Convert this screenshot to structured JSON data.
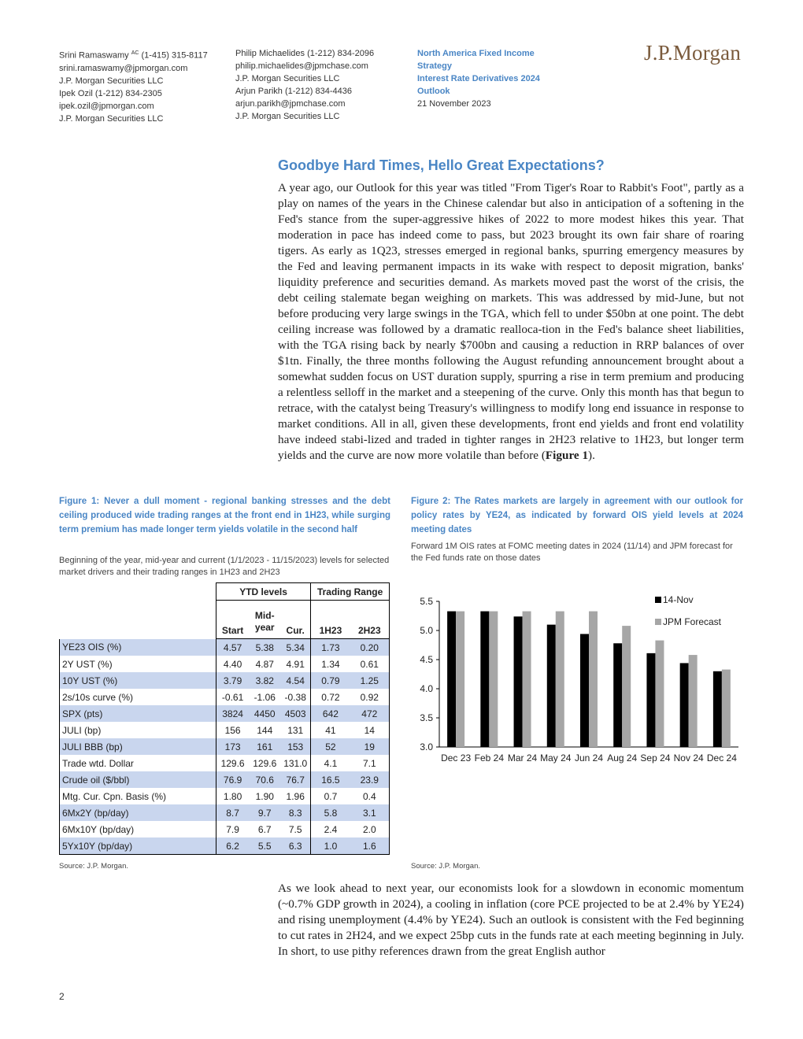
{
  "header": {
    "contacts_col1": [
      {
        "name": "Srini Ramaswamy",
        "sup": "AC",
        "phone": "(1-415) 315-8117"
      },
      {
        "text": "srini.ramaswamy@jpmorgan.com"
      },
      {
        "text": "J.P. Morgan Securities LLC"
      },
      {
        "text": "Ipek Ozil  (1-212) 834-2305"
      },
      {
        "text": "ipek.ozil@jpmorgan.com"
      },
      {
        "text": "J.P. Morgan Securities LLC"
      }
    ],
    "contacts_col2": [
      {
        "text": "Philip Michaelides  (1-212) 834-2096"
      },
      {
        "text": "philip.michaelides@jpmchase.com"
      },
      {
        "text": "J.P. Morgan Securities LLC"
      },
      {
        "text": "Arjun Parikh  (1-212) 834-4436"
      },
      {
        "text": "arjun.parikh@jpmchase.com"
      },
      {
        "text": "J.P. Morgan Securities LLC"
      }
    ],
    "strategy_line1": "North America Fixed Income",
    "strategy_line2": "Strategy",
    "outlook_line1": "Interest Rate Derivatives 2024",
    "outlook_line2": "Outlook",
    "date": "21 November 2023",
    "logo": "J.P.Morgan"
  },
  "article": {
    "title": "Goodbye Hard Times, Hello Great Expectations?",
    "para1": "A year ago, our Outlook for this year was titled \"From Tiger's Roar to Rabbit's Foot\", partly as a play on names of the years in the Chinese calendar but also in anticipation of a softening in the Fed's stance from the super-aggressive hikes of 2022 to more modest hikes this year. That moderation in pace has indeed come to pass, but 2023 brought its own fair share of roaring tigers. As early as 1Q23, stresses emerged in regional banks, spurring emergency measures by the Fed and leaving permanent impacts in its wake with respect to deposit migration, banks' liquidity preference and securities demand. As markets moved past the worst of the crisis, the debt ceiling stalemate began weighing on markets. This was addressed by mid-June, but not before producing very large swings in the TGA, which fell to under $50bn at one point. The debt ceiling increase was followed by a dramatic realloca-tion in the Fed's balance sheet liabilities, with the TGA rising back by nearly $700bn and causing a reduction in RRP balances of over $1tn. Finally, the three months following the August refunding announcement brought about a somewhat sudden focus on UST duration supply, spurring a rise in term premium and producing a relentless selloff in the market and a steepening of the curve. Only this month has that begun to retrace, with the catalyst being Treasury's willingness to modify long end issuance in response to market conditions. All in all, given these developments, front end yields and front end volatility have indeed stabi-lized and traded in tighter ranges in 2H23 relative to 1H23, but longer term yields and the curve are now more volatile than before (",
    "para1_ref": "Figure 1",
    "para1_end": ").",
    "para2": "As we look ahead to next year, our economists look for a slowdown in economic momentum (~0.7% GDP growth in 2024), a cooling in inflation (core PCE projected to be at 2.4% by YE24) and rising unemployment (4.4% by YE24). Such an outlook is consistent with the Fed beginning to cut rates in 2H24, and we expect 25bp cuts in the funds rate at each meeting beginning in July. In short, to use pithy references drawn from the great English author"
  },
  "figure1": {
    "title": "Figure 1: Never a dull moment - regional banking stresses and the debt ceiling produced wide trading ranges at the front end in 1H23, while surging term premium has made longer term yields volatile in the second half",
    "subtitle": "Beginning of the year, mid-year and current (1/1/2023 - 11/15/2023) levels for selected market drivers and their trading ranges in 1H23 and 2H23",
    "group_ytd": "YTD levels",
    "group_range": "Trading Range",
    "col_start": "Start",
    "col_mid1": "Mid-",
    "col_mid2": "year",
    "col_cur": "Cur.",
    "col_h1": "1H23",
    "col_h2": "2H23",
    "rows": [
      {
        "label": "YE23 OIS (%)",
        "start": "4.57",
        "mid": "5.38",
        "cur": "5.34",
        "h1": "1.73",
        "h2": "0.20"
      },
      {
        "label": "2Y UST (%)",
        "start": "4.40",
        "mid": "4.87",
        "cur": "4.91",
        "h1": "1.34",
        "h2": "0.61"
      },
      {
        "label": "10Y UST (%)",
        "start": "3.79",
        "mid": "3.82",
        "cur": "4.54",
        "h1": "0.79",
        "h2": "1.25"
      },
      {
        "label": "2s/10s curve (%)",
        "start": "-0.61",
        "mid": "-1.06",
        "cur": "-0.38",
        "h1": "0.72",
        "h2": "0.92"
      },
      {
        "label": "SPX (pts)",
        "start": "3824",
        "mid": "4450",
        "cur": "4503",
        "h1": "642",
        "h2": "472"
      },
      {
        "label": "JULI (bp)",
        "start": "156",
        "mid": "144",
        "cur": "131",
        "h1": "41",
        "h2": "14"
      },
      {
        "label": "JULI BBB (bp)",
        "start": "173",
        "mid": "161",
        "cur": "153",
        "h1": "52",
        "h2": "19"
      },
      {
        "label": "Trade wtd. Dollar",
        "start": "129.6",
        "mid": "129.6",
        "cur": "131.0",
        "h1": "4.1",
        "h2": "7.1"
      },
      {
        "label": "Crude oil ($/bbl)",
        "start": "76.9",
        "mid": "70.6",
        "cur": "76.7",
        "h1": "16.5",
        "h2": "23.9"
      },
      {
        "label": "Mtg. Cur. Cpn. Basis (%)",
        "start": "1.80",
        "mid": "1.90",
        "cur": "1.96",
        "h1": "0.7",
        "h2": "0.4"
      },
      {
        "label": "6Mx2Y (bp/day)",
        "start": "8.7",
        "mid": "9.7",
        "cur": "8.3",
        "h1": "5.8",
        "h2": "3.1"
      },
      {
        "label": "6Mx10Y (bp/day)",
        "start": "7.9",
        "mid": "6.7",
        "cur": "7.5",
        "h1": "2.4",
        "h2": "2.0"
      },
      {
        "label": "5Yx10Y (bp/day)",
        "start": "6.2",
        "mid": "5.5",
        "cur": "6.3",
        "h1": "1.0",
        "h2": "1.6"
      }
    ],
    "source": "Source: J.P. Morgan."
  },
  "figure2": {
    "title": "Figure 2: The Rates markets are largely in agreement with our outlook for policy rates by YE24, as indicated by forward OIS yield levels at 2024 meeting dates",
    "subtitle": "Forward 1M OIS rates at FOMC meeting dates in 2024 (11/14) and JPM forecast for the Fed funds rate on those dates",
    "source": "Source: J.P. Morgan."
  },
  "chart_data": {
    "type": "bar",
    "categories": [
      "Dec 23",
      "Feb 24",
      "Mar 24",
      "May 24",
      "Jun 24",
      "Aug 24",
      "Sep 24",
      "Nov 24",
      "Dec 24"
    ],
    "series": [
      {
        "name": "14-Nov",
        "color": "#000000",
        "values": [
          5.33,
          5.33,
          5.24,
          5.1,
          4.94,
          4.78,
          4.61,
          4.44,
          4.3
        ]
      },
      {
        "name": "JPM Forecast",
        "color": "#a6a6a6",
        "values": [
          5.33,
          5.33,
          5.33,
          5.33,
          5.33,
          5.08,
          4.83,
          4.58,
          4.33
        ]
      }
    ],
    "y_ticks": [
      "3.0",
      "3.5",
      "4.0",
      "4.5",
      "5.0",
      "5.5"
    ],
    "ylim": [
      3.0,
      5.5
    ],
    "legend_position": "top-right",
    "grid": false
  },
  "footer": {
    "page_number": "2"
  }
}
